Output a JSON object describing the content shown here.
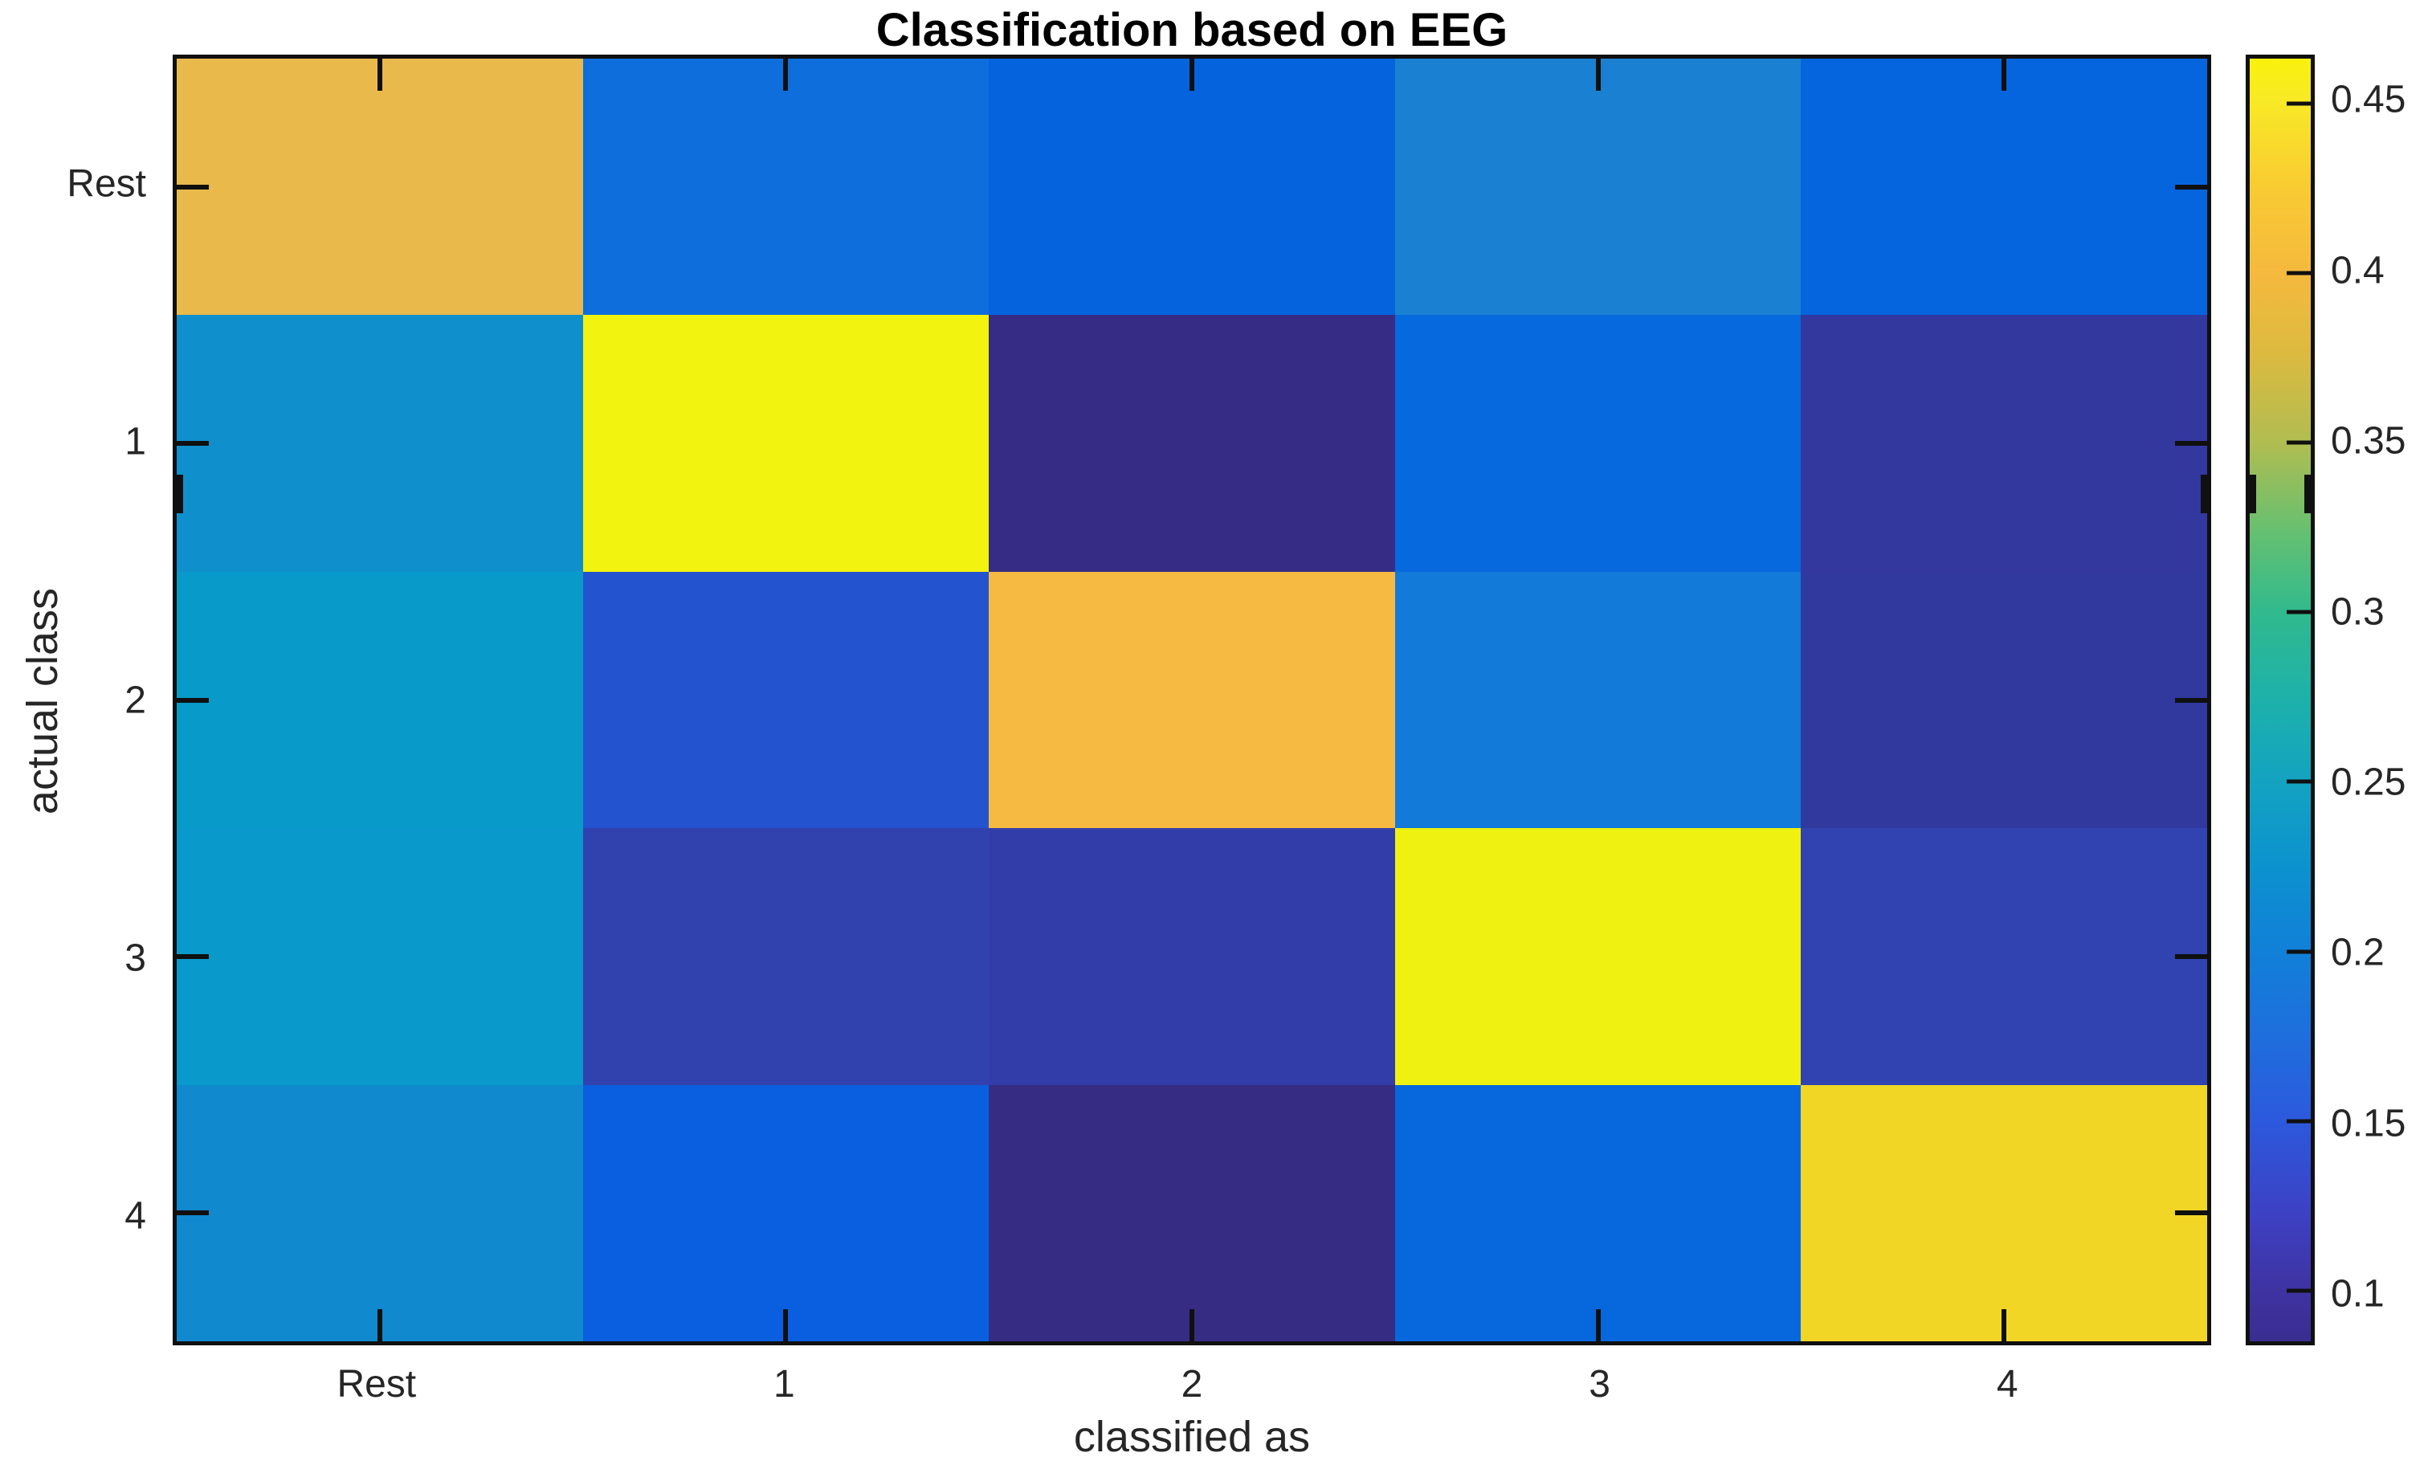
{
  "figure": {
    "title": "Classification based on EEG",
    "background_color": "#ffffff",
    "text_color": "#262626",
    "axis_color": "#101010"
  },
  "chart_data": {
    "type": "heatmap",
    "title": "Classification based on EEG",
    "xlabel": "classified as",
    "ylabel": "actual class",
    "x_categories": [
      "Rest",
      "1",
      "2",
      "3",
      "4"
    ],
    "y_categories": [
      "Rest",
      "1",
      "2",
      "3",
      "4"
    ],
    "values": [
      [
        0.4,
        0.175,
        0.16,
        0.195,
        0.155
      ],
      [
        0.22,
        0.46,
        0.085,
        0.165,
        0.11
      ],
      [
        0.235,
        0.145,
        0.405,
        0.19,
        0.11
      ],
      [
        0.23,
        0.12,
        0.115,
        0.46,
        0.125
      ],
      [
        0.215,
        0.155,
        0.09,
        0.16,
        0.43
      ]
    ],
    "values_note": "proportions estimated from parula colormap against colorbar scale",
    "cell_colors": [
      [
        "#e9b94b",
        "#0d6edc",
        "#0563dd",
        "#1a81d2",
        "#0565de"
      ],
      [
        "#0f90cd",
        "#f2f30e",
        "#362c85",
        "#0669dd",
        "#33389f"
      ],
      [
        "#089bc9",
        "#2453cf",
        "#f6b942",
        "#127ad8",
        "#31399f"
      ],
      [
        "#0999cb",
        "#3142ae",
        "#333daa",
        "#eff211",
        "#3043b0"
      ],
      [
        "#1189ce",
        "#0a5ee0",
        "#362c83",
        "#0768dd",
        "#f2d626"
      ]
    ],
    "colormap": "parula",
    "color_range": [
      0.085,
      0.4633
    ],
    "grid": false,
    "colorbar": {
      "position": "right",
      "tick_values": [
        0.45,
        0.4,
        0.35,
        0.3,
        0.25,
        0.2,
        0.15,
        0.1
      ],
      "tick_labels": [
        "0.45",
        "0.4",
        "0.35",
        "0.3",
        "0.25",
        "0.2",
        "0.15",
        "0.1"
      ],
      "gradient_stops": [
        {
          "t": 0.0,
          "color": "#3a2d90"
        },
        {
          "t": 0.04,
          "color": "#3f33a2"
        },
        {
          "t": 0.1,
          "color": "#3d41c4"
        },
        {
          "t": 0.172,
          "color": "#2c59dd"
        },
        {
          "t": 0.24,
          "color": "#1e6fdd"
        },
        {
          "t": 0.304,
          "color": "#1180d8"
        },
        {
          "t": 0.37,
          "color": "#0c92cf"
        },
        {
          "t": 0.437,
          "color": "#13a3c1"
        },
        {
          "t": 0.5,
          "color": "#1db1ab"
        },
        {
          "t": 0.569,
          "color": "#31ba8d"
        },
        {
          "t": 0.63,
          "color": "#64c071"
        },
        {
          "t": 0.7,
          "color": "#b0bd51"
        },
        {
          "t": 0.77,
          "color": "#dcba3f"
        },
        {
          "t": 0.833,
          "color": "#f5b93e"
        },
        {
          "t": 0.9,
          "color": "#f9cb32"
        },
        {
          "t": 0.966,
          "color": "#f8e926"
        },
        {
          "t": 1.0,
          "color": "#f9f20d"
        }
      ]
    }
  }
}
